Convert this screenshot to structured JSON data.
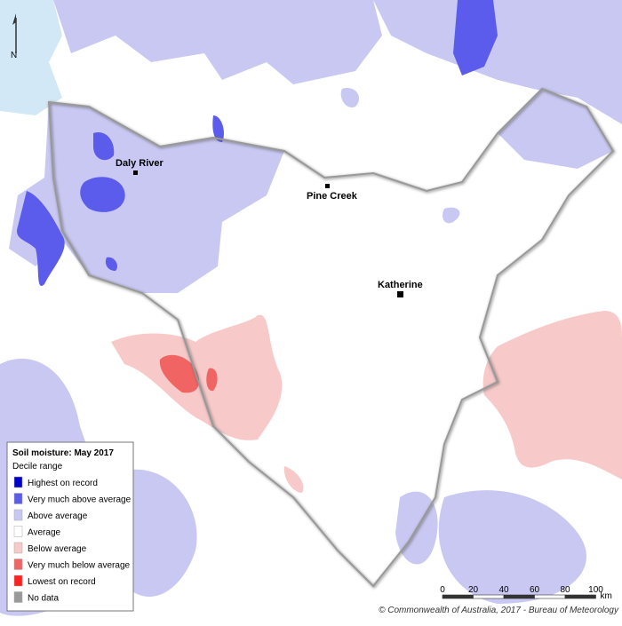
{
  "map": {
    "north": "N",
    "places": [
      {
        "name": "Daly River"
      },
      {
        "name": "Pine Creek"
      },
      {
        "name": "Katherine"
      }
    ],
    "legend": {
      "title": "Soil moisture: May 2017",
      "subtitle": "Decile range",
      "items": [
        {
          "label": "Highest on record",
          "color": "#0000cc"
        },
        {
          "label": "Very much above average",
          "color": "#5c5cec"
        },
        {
          "label": "Above average",
          "color": "#c8c8f2"
        },
        {
          "label": "Average",
          "color": "#ffffff"
        },
        {
          "label": "Below average",
          "color": "#f7c9c9"
        },
        {
          "label": "Very much below average",
          "color": "#f06464"
        },
        {
          "label": "Lowest on record",
          "color": "#ff2020"
        },
        {
          "label": "No data",
          "color": "#999999"
        }
      ]
    },
    "scale": {
      "ticks": [
        0,
        20,
        40,
        60,
        80,
        100
      ],
      "unit": "km"
    },
    "credit": "© Commonwealth of Australia, 2017 - Bureau of Meteorology"
  }
}
